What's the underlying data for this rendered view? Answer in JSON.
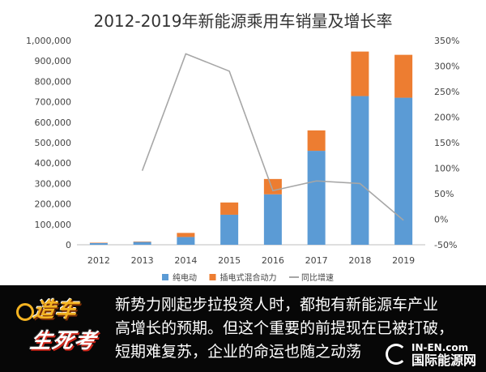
{
  "chart_data": {
    "type": "bar",
    "title": "2012-2019年新能源乘用车销量及增长率",
    "categories": [
      "2012",
      "2013",
      "2014",
      "2015",
      "2016",
      "2017",
      "2018",
      "2019"
    ],
    "series": [
      {
        "name": "纯电动",
        "type": "bar",
        "stacked": true,
        "axis": "left",
        "color": "#5b9bd5",
        "values": [
          9000,
          14000,
          38000,
          147000,
          247000,
          460000,
          728000,
          720000
        ]
      },
      {
        "name": "插电式混合动力",
        "type": "bar",
        "stacked": true,
        "axis": "left",
        "color": "#ed7d31",
        "values": [
          1000,
          1500,
          20000,
          60000,
          75000,
          100000,
          218000,
          210000
        ]
      },
      {
        "name": "同比增速",
        "type": "line",
        "axis": "right",
        "color": "#a6a6a6",
        "values": [
          null,
          0.95,
          3.24,
          2.9,
          0.56,
          0.75,
          0.7,
          -0.02
        ]
      }
    ],
    "ylim": [
      0,
      1000000
    ],
    "y_ticks": [
      "0",
      "100,000",
      "200,000",
      "300,000",
      "400,000",
      "500,000",
      "600,000",
      "700,000",
      "800,000",
      "900,000",
      "1,000,000"
    ],
    "y2lim": [
      -0.5,
      3.5
    ],
    "y2_ticks": [
      "-50%",
      "0%",
      "50%",
      "100%",
      "150%",
      "200%",
      "250%",
      "300%",
      "350%"
    ],
    "grid": false,
    "legend_position": "bottom"
  },
  "caption": {
    "line1": "新势力刚起步拉投资人时，都抱有新能源车产业",
    "line2": "高增长的预期。但这个重要的前提现在已被打破，",
    "line3": "短期难复苏，企业的命运也随之动荡"
  },
  "logo": {
    "top": "造车",
    "bottom": "生死考"
  },
  "watermark": {
    "en": "IN-EN.com",
    "cn": "国际能源网"
  }
}
